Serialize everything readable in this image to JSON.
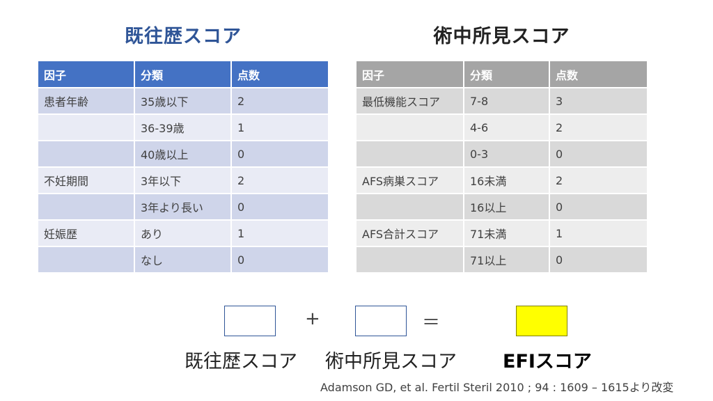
{
  "history": {
    "title": "既往歴スコア",
    "headers": [
      "因子",
      "分類",
      "点数"
    ],
    "rows": [
      [
        "患者年齢",
        "35歳以下",
        "2"
      ],
      [
        "",
        "36-39歳",
        "1"
      ],
      [
        "",
        "40歳以上",
        "0"
      ],
      [
        "不妊期間",
        "3年以下",
        "2"
      ],
      [
        "",
        "3年より長い",
        "0"
      ],
      [
        "妊娠歴",
        "あり",
        "1"
      ],
      [
        "",
        "なし",
        "0"
      ]
    ]
  },
  "surgical": {
    "title": "術中所見スコア",
    "headers": [
      "因子",
      "分類",
      "点数"
    ],
    "rows": [
      [
        "最低機能スコア",
        "7-8",
        "3"
      ],
      [
        "",
        "4-6",
        "2"
      ],
      [
        "",
        "0-3",
        "0"
      ],
      [
        "AFS病巣スコア",
        "16未満",
        "2"
      ],
      [
        "",
        "16以上",
        "0"
      ],
      [
        "AFS合計スコア",
        "71未満",
        "1"
      ],
      [
        "",
        "71以上",
        "0"
      ]
    ]
  },
  "formula": {
    "plus": "+",
    "equals": "＝",
    "history_label": "既往歴スコア",
    "surgical_label": "術中所見スコア",
    "efi_label": "EFIスコア",
    "efi_box_color": "#FFFF00"
  },
  "citation": "Adamson GD, et al. Fertil Steril 2010 ; 94 : 1609 – 1615より改変",
  "colors": {
    "history_title": "#2F5597",
    "history_header": "#4472C4",
    "surgical_header": "#A5A5A5"
  }
}
